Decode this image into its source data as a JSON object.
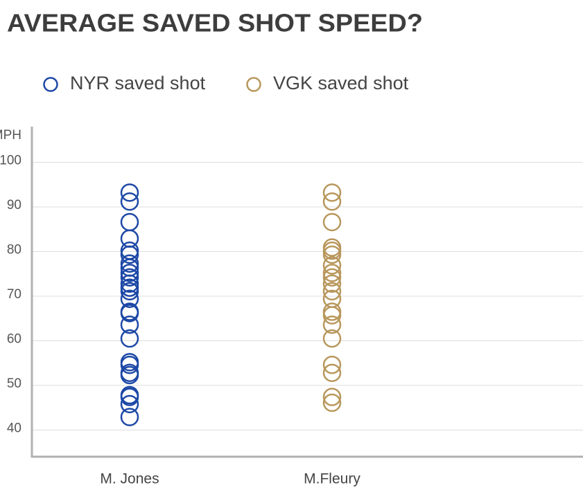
{
  "chart_data": {
    "type": "scatter",
    "title": "AVERAGE SAVED SHOT SPEED?",
    "y_label": "MPH",
    "categories": [
      "M. Jones",
      "M.Fleury"
    ],
    "series": [
      {
        "name": "NYR saved shot",
        "color": "#1d48a6",
        "values": [
          93.2,
          91.2,
          86.6,
          82.9,
          80.2,
          79.3,
          77.3,
          76.4,
          75.2,
          74.2,
          72.8,
          71.9,
          71.1,
          69.4,
          66.5,
          66.2,
          63.6,
          60.5,
          55.2,
          54.6,
          52.8,
          52.3,
          47.8,
          47.4,
          45.8,
          42.9
        ]
      },
      {
        "name": "VGK saved shot",
        "color": "#b8975c",
        "values": [
          93.2,
          91.2,
          86.6,
          80.9,
          80.2,
          79.3,
          76.9,
          75.2,
          74.2,
          72.8,
          71.1,
          69.4,
          66.5,
          65.7,
          63.6,
          60.5,
          54.6,
          52.8,
          47.4,
          46.1
        ]
      }
    ],
    "ylim": [
      34,
      108
    ],
    "yticks": [
      40,
      50,
      60,
      70,
      80,
      90,
      100
    ],
    "grid": true
  }
}
